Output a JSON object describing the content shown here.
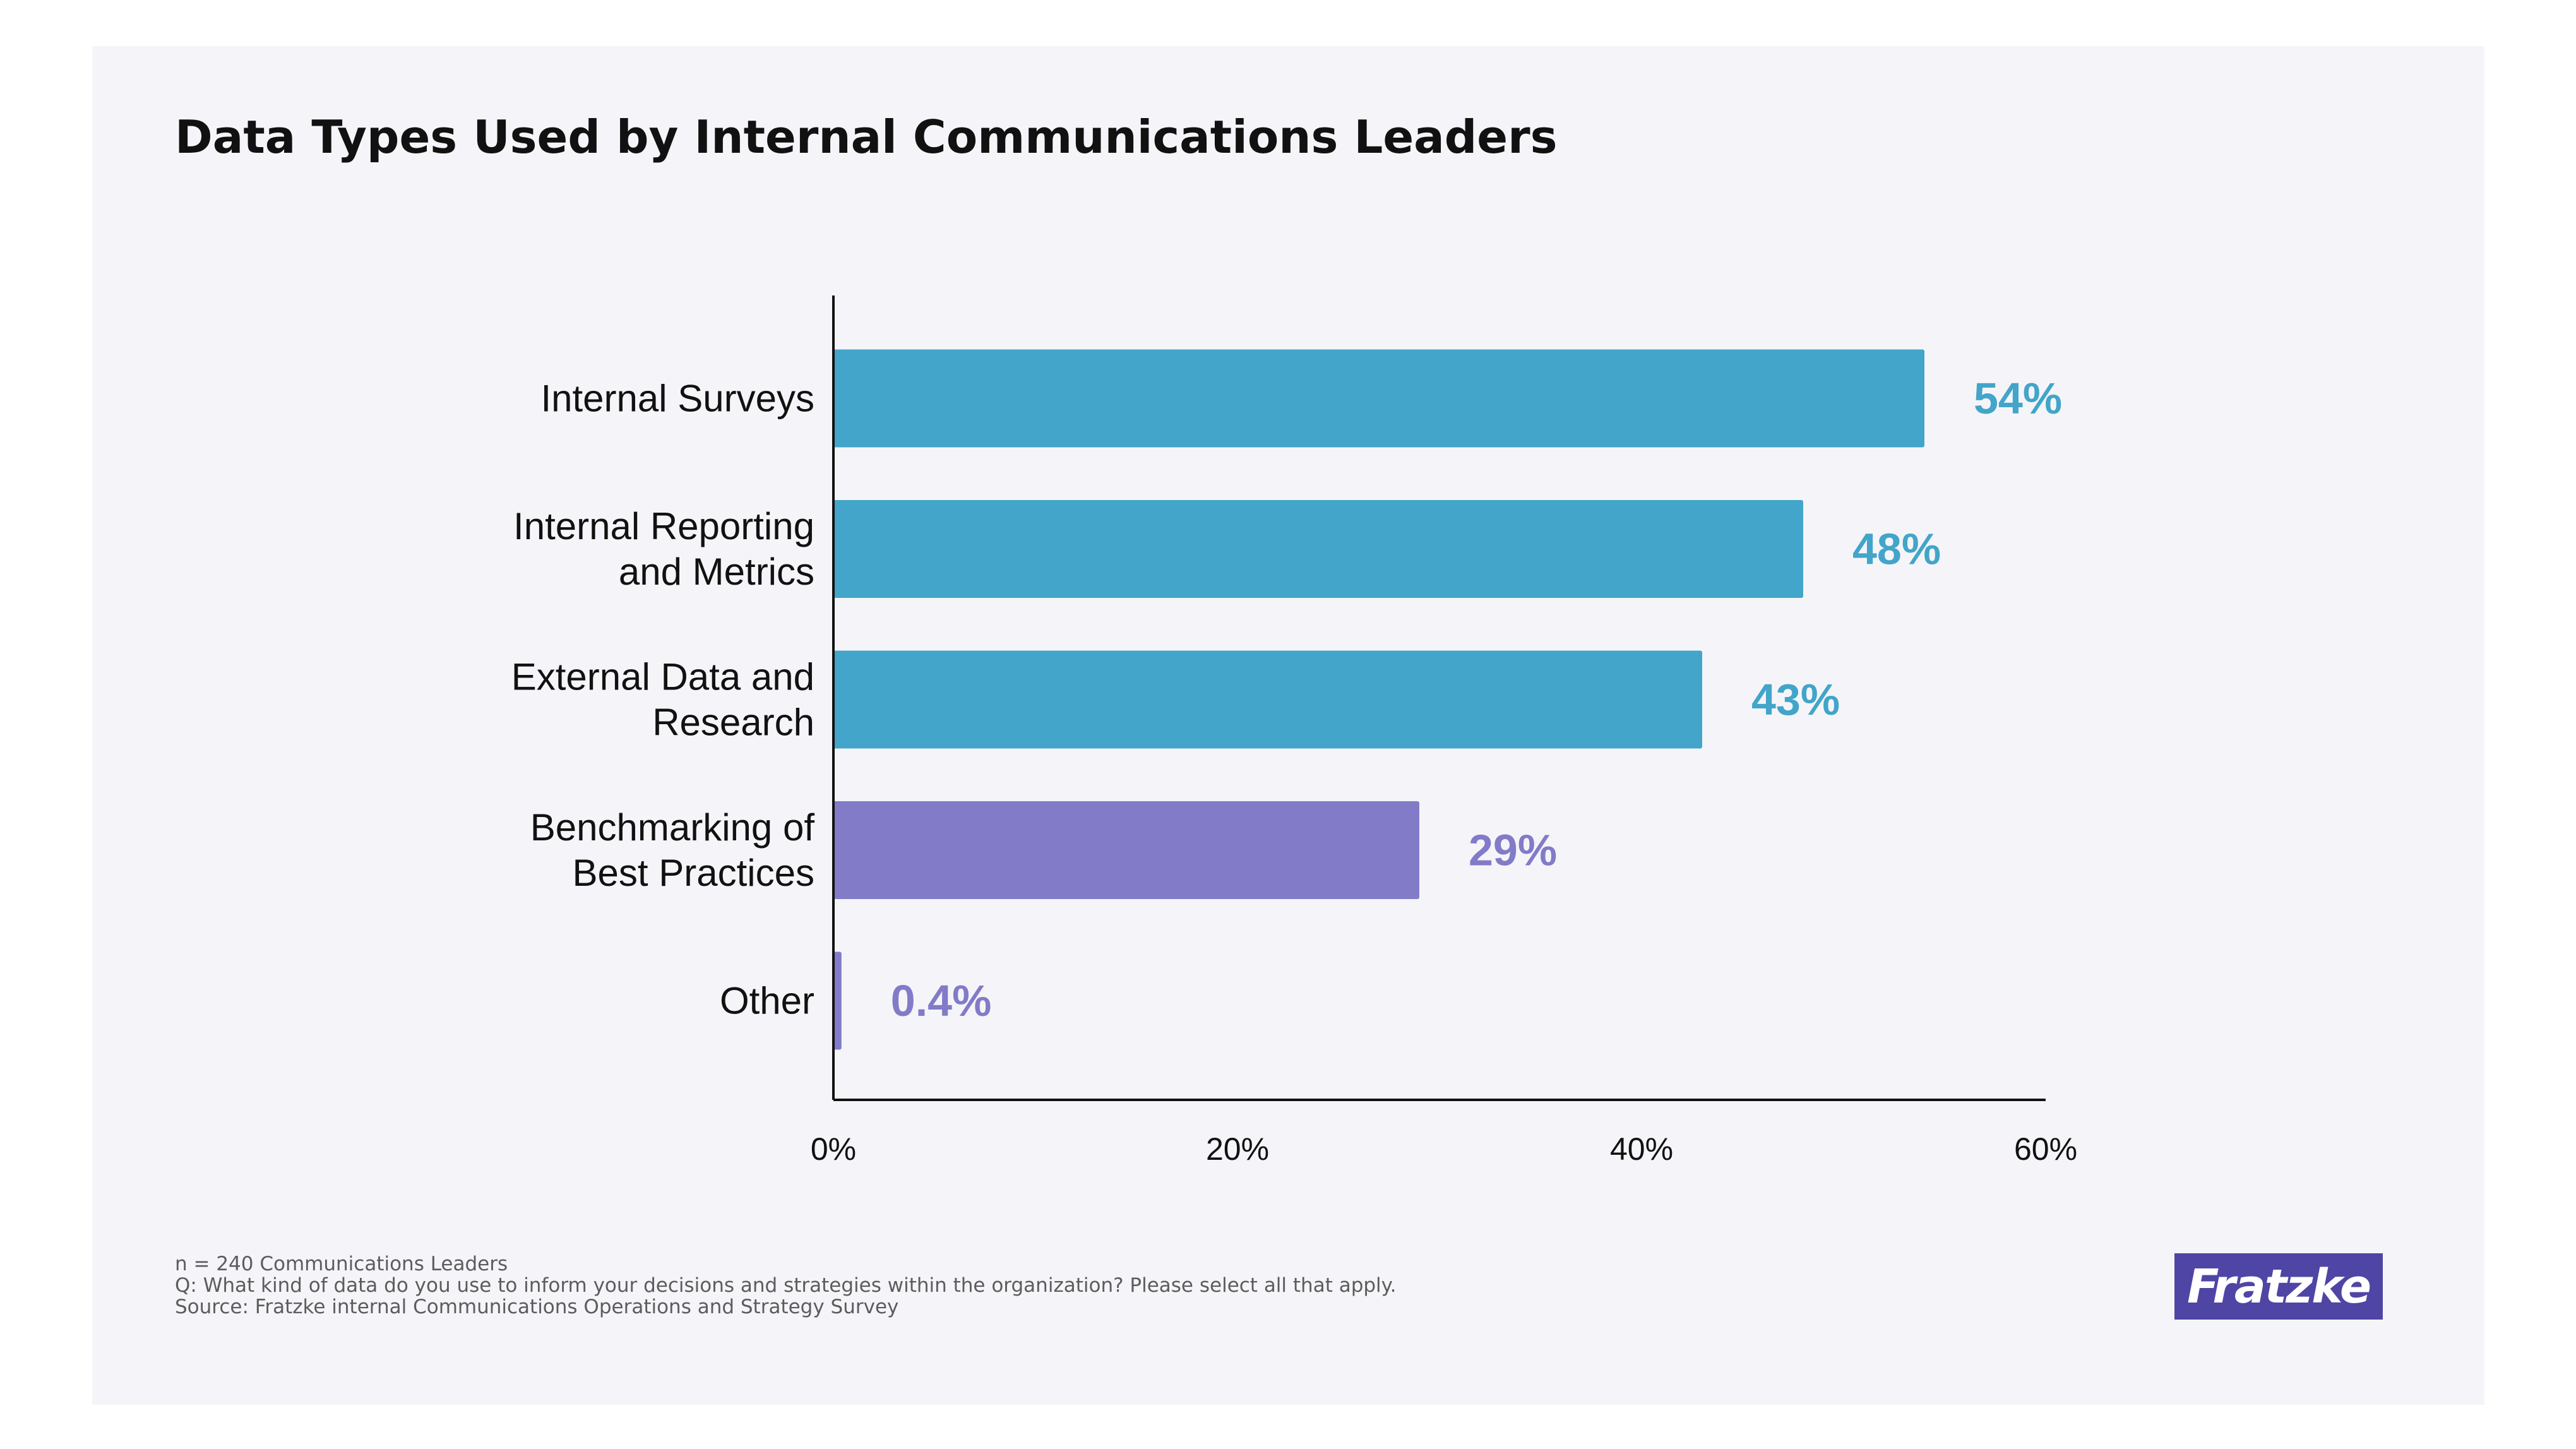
{
  "colors": {
    "background": "#f5f5f9",
    "teal": "#42a5c9",
    "purple": "#817bc8",
    "axis": "#111111",
    "logo_bg": "#4f45a5"
  },
  "footnotes": {
    "sample": "n = 240 Communications Leaders",
    "question": "Q: What kind of data do you use to inform your decisions and strategies within the organization? Please select all that apply.",
    "source": "Source: Fratzke internal Communications Operations and Strategy Survey"
  },
  "logo": {
    "text": "Fratzke"
  },
  "chart_data": {
    "type": "bar",
    "orientation": "horizontal",
    "title": "Data Types Used by Internal Communications Leaders",
    "xlabel": "",
    "ylabel": "",
    "xlim": [
      0,
      60
    ],
    "x_ticks": [
      0,
      20,
      40,
      60
    ],
    "x_tick_labels": [
      "0%",
      "20%",
      "40%",
      "60%"
    ],
    "grid": false,
    "legend": "none",
    "categories": [
      [
        "Internal Surveys"
      ],
      [
        "Internal Reporting",
        "and Metrics"
      ],
      [
        "External Data and",
        "Research"
      ],
      [
        "Benchmarking of",
        "Best Practices"
      ],
      [
        "Other"
      ]
    ],
    "values": [
      54,
      48,
      43,
      29,
      0.4
    ],
    "value_labels": [
      "54%",
      "48%",
      "43%",
      "29%",
      "0.4%"
    ],
    "bar_colors": [
      "#42a5c9",
      "#42a5c9",
      "#42a5c9",
      "#817bc8",
      "#817bc8"
    ]
  }
}
